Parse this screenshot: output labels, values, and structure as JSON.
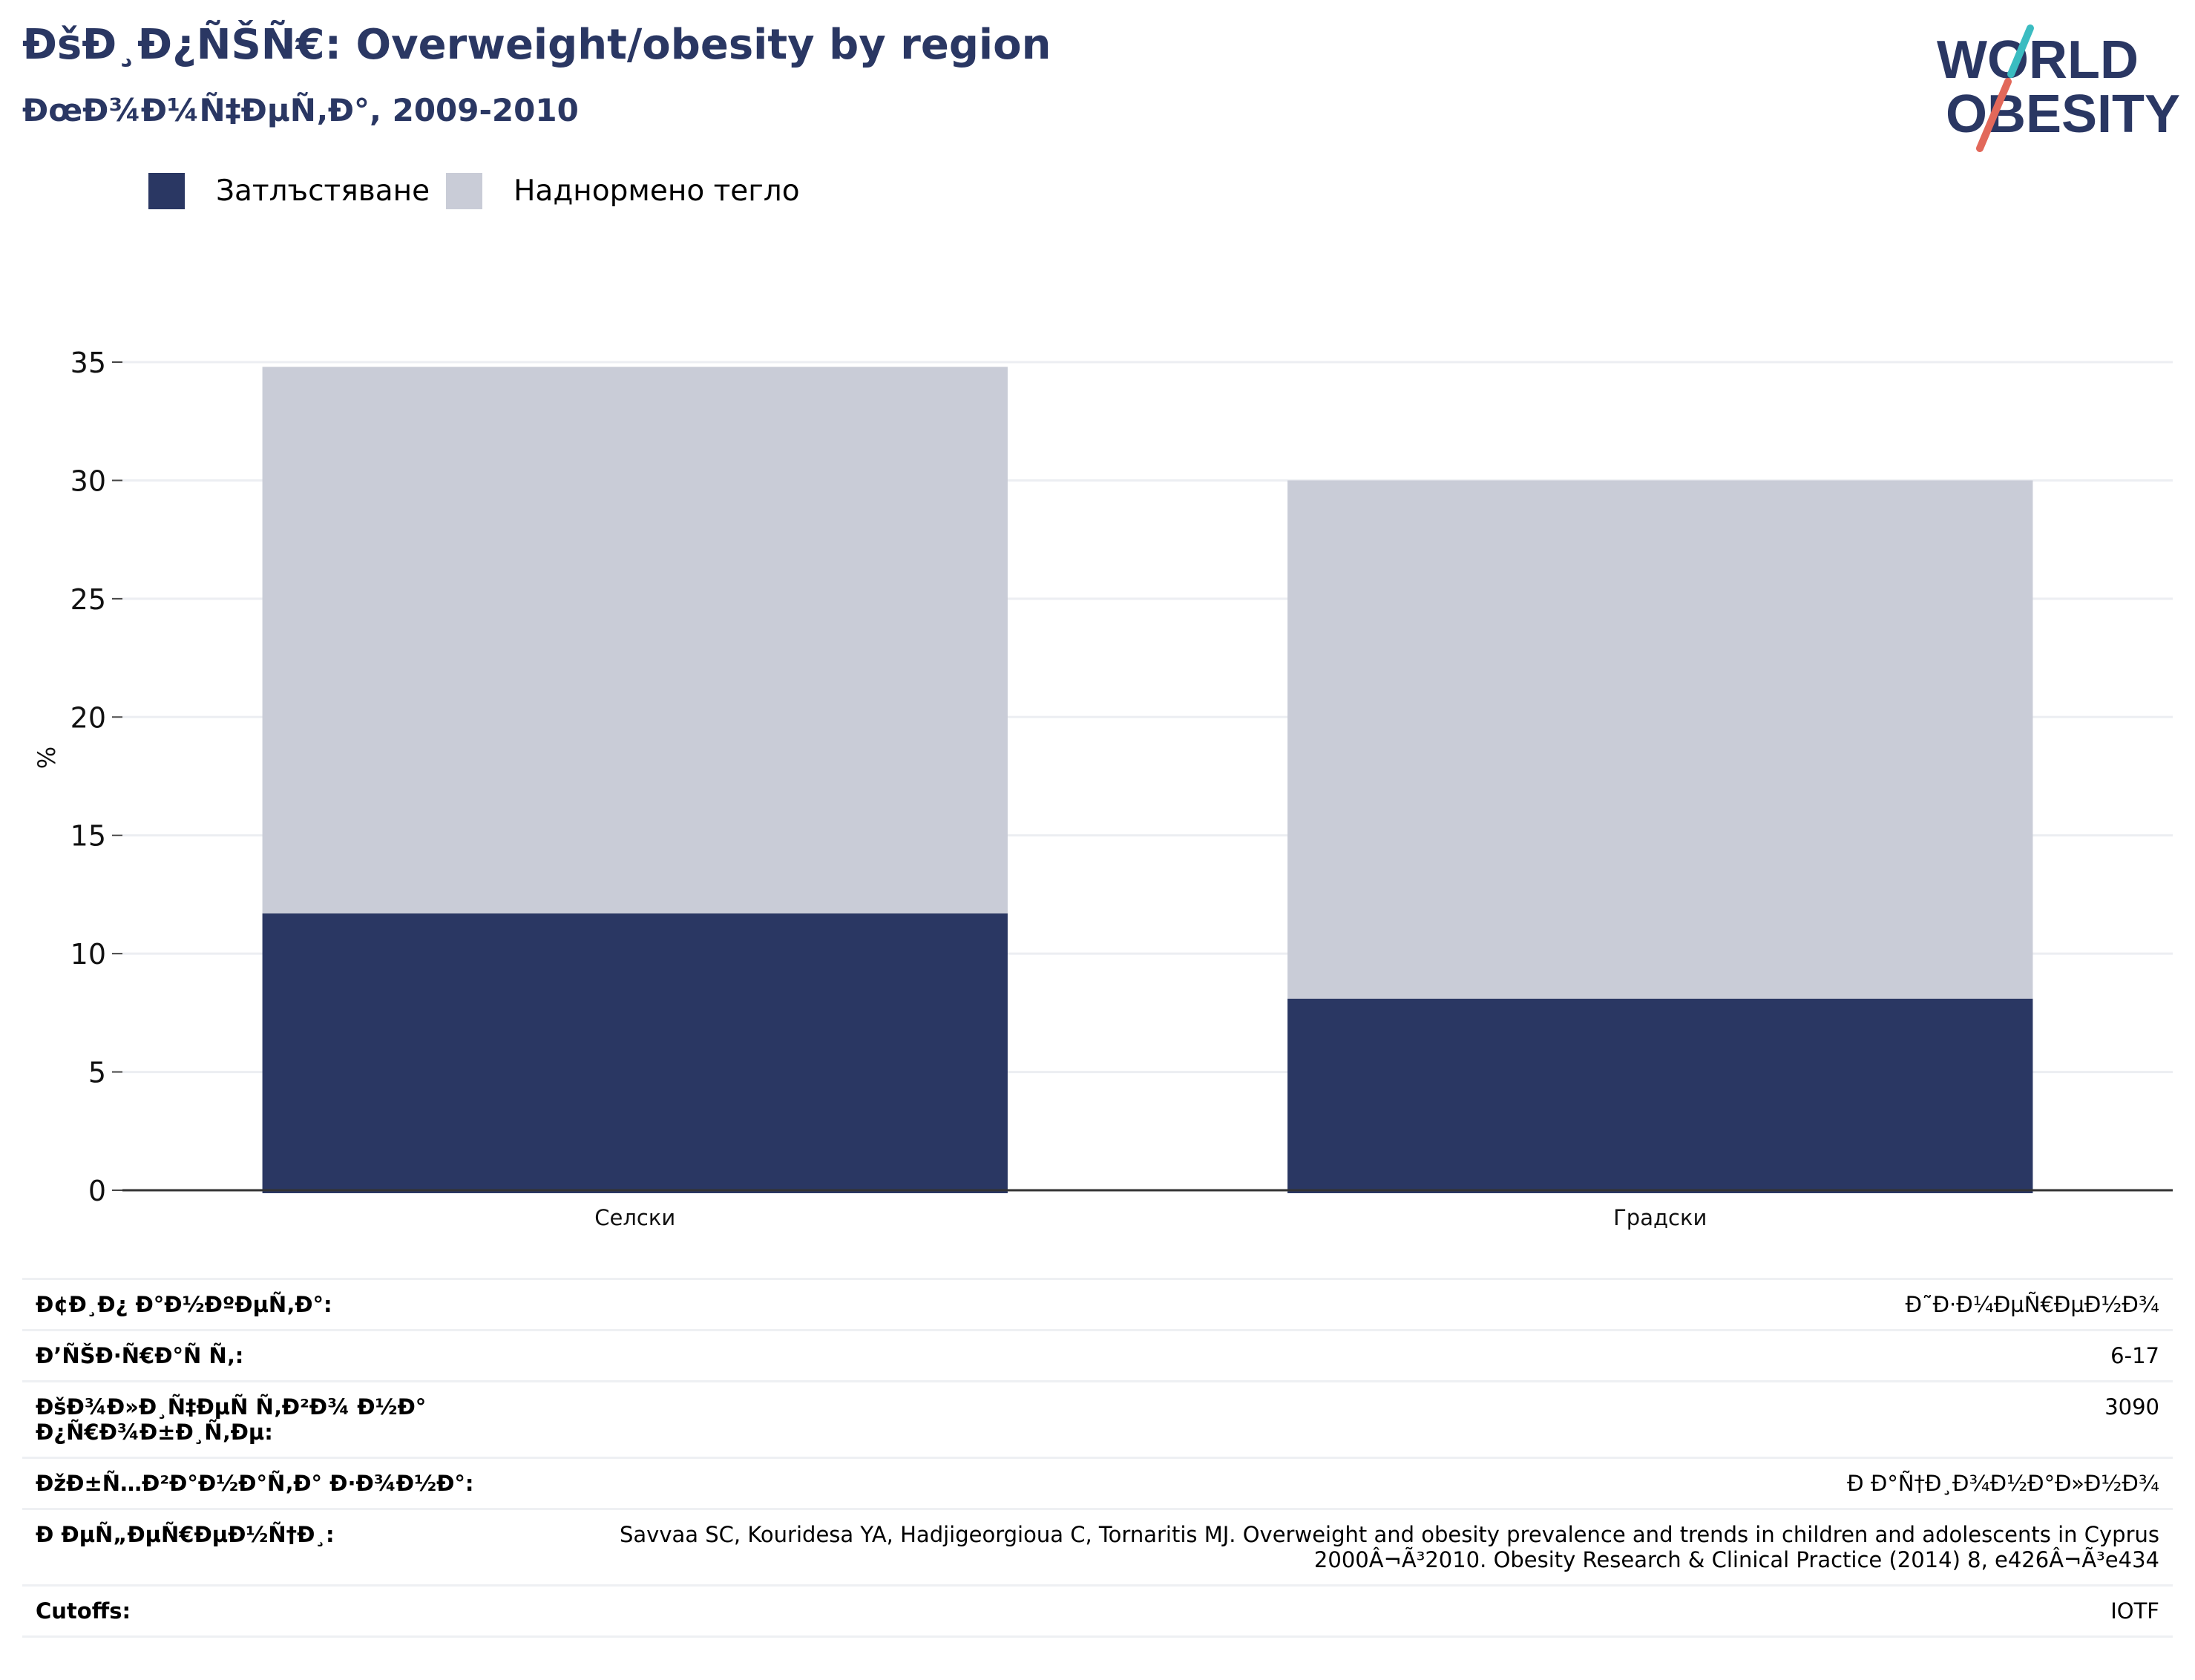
{
  "header": {
    "title": "ÐšÐ¸Ð¿ÑŠÑ€: Overweight/obesity by region",
    "subtitle": "ÐœÐ¾Ð¼Ñ‡ÐµÑ‚Ð°, 2009-2010"
  },
  "logo": {
    "line1": "WORLD",
    "line2": "OBESITY",
    "colors": {
      "text": "#2a3763",
      "slash_teal": "#3bbcc1",
      "slash_red": "#e2685a"
    }
  },
  "legend": [
    {
      "label": "Затлъстяване",
      "color": "#2a3763"
    },
    {
      "label": "Наднормено тегло",
      "color": "#c9ccd7"
    }
  ],
  "chart_data": {
    "type": "bar",
    "stacked": true,
    "categories": [
      "Селски",
      "Градски"
    ],
    "series": [
      {
        "name": "Затлъстяване",
        "color": "#2a3763",
        "values": [
          11.7,
          8.1
        ]
      },
      {
        "name": "Наднормено тегло",
        "color": "#c9ccd7",
        "values": [
          23.1,
          21.9
        ]
      }
    ],
    "ylabel": "%",
    "ylim": [
      0,
      35
    ],
    "yticks": [
      0,
      5,
      10,
      15,
      20,
      25,
      30,
      35
    ],
    "grid": true,
    "legend_position": "top-left"
  },
  "info": [
    {
      "key": "Ð¢Ð¸Ð¿ Ð°Ð½ÐºÐµÑ‚Ð°:",
      "value": "Ð˜Ð·Ð¼ÐµÑ€ÐµÐ½Ð¾"
    },
    {
      "key": "Ð’ÑŠÐ·Ñ€Ð°Ñ Ñ‚:",
      "value": "6-17"
    },
    {
      "key": "ÐšÐ¾Ð»Ð¸Ñ‡ÐµÑ Ñ‚Ð²Ð¾ Ð½Ð° Ð¿Ñ€Ð¾Ð±Ð¸Ñ‚Ðµ:",
      "value": "3090"
    },
    {
      "key": "ÐžÐ±Ñ…Ð²Ð°Ð½Ð°Ñ‚Ð° Ð·Ð¾Ð½Ð°:",
      "value": "Ð Ð°Ñ†Ð¸Ð¾Ð½Ð°Ð»Ð½Ð¾"
    },
    {
      "key": "Ð ÐµÑ„ÐµÑ€ÐµÐ½Ñ†Ð¸:",
      "value": "Savvaa SC, Kouridesa YA, Hadjigeorgioua C, Tornaritis MJ. Overweight and obesity prevalence and trends in children and adolescents in Cyprus 2000Â¬Ã³2010. Obesity Research & Clinical Practice (2014) 8, e426Â¬Ã³e434"
    },
    {
      "key": "Cutoffs:",
      "value": "IOTF"
    }
  ]
}
